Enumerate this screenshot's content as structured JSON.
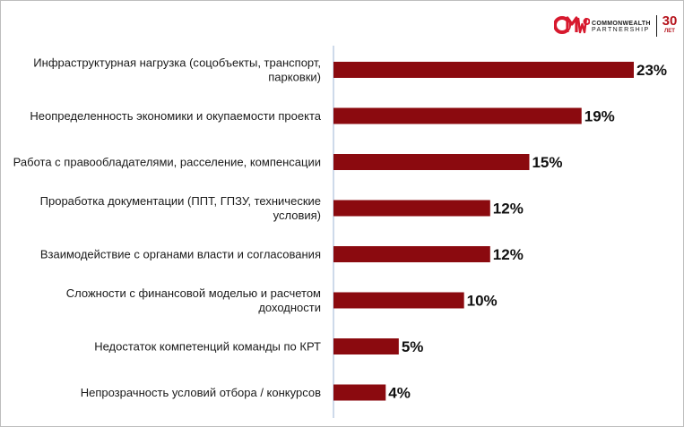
{
  "logo": {
    "mark_text": "CMWP",
    "brand_line1": "COMMONWEALTH",
    "brand_line2": "PARTNERSHIP",
    "years_number": "30",
    "years_unit": "ЛЕТ",
    "mark_color": "#d7192e"
  },
  "chart_data": {
    "type": "bar",
    "orientation": "horizontal",
    "categories": [
      "Инфраструктурная нагрузка (соцобъекты, транспорт, парковки)",
      "Неопределенность экономики и окупаемости проекта",
      "Работа с правообладателями, расселение, компенсации",
      "Проработка документации (ППТ, ГПЗУ, технические условия)",
      "Взаимодействие с органами власти и согласования",
      "Сложности с финансовой моделью и расчетом доходности",
      "Недостаток компетенций команды по КРТ",
      "Непрозрачность условий отбора / конкурсов"
    ],
    "category_lines": [
      [
        "Инфраструктурная нагрузка (соцобъекты, транспорт,",
        "парковки)"
      ],
      [
        "Неопределенность экономики и окупаемости проекта"
      ],
      [
        "Работа с правообладателями, расселение, компенсации"
      ],
      [
        "Проработка документации (ППТ, ГПЗУ, технические",
        "условия)"
      ],
      [
        "Взаимодействие с органами власти и согласования"
      ],
      [
        "Сложности с финансовой моделью и расчетом",
        "доходности"
      ],
      [
        "Недостаток компетенций команды по КРТ"
      ],
      [
        "Непрозрачность условий отбора / конкурсов"
      ]
    ],
    "values": [
      23,
      19,
      15,
      12,
      12,
      10,
      5,
      4
    ],
    "value_labels": [
      "23%",
      "19%",
      "15%",
      "12%",
      "12%",
      "10%",
      "5%",
      "4%"
    ],
    "unit": "%",
    "xlim": [
      0,
      23
    ],
    "bar_color": "#8b0a0f",
    "axis_color": "#9db4d6",
    "grid": false,
    "legend": "none"
  }
}
